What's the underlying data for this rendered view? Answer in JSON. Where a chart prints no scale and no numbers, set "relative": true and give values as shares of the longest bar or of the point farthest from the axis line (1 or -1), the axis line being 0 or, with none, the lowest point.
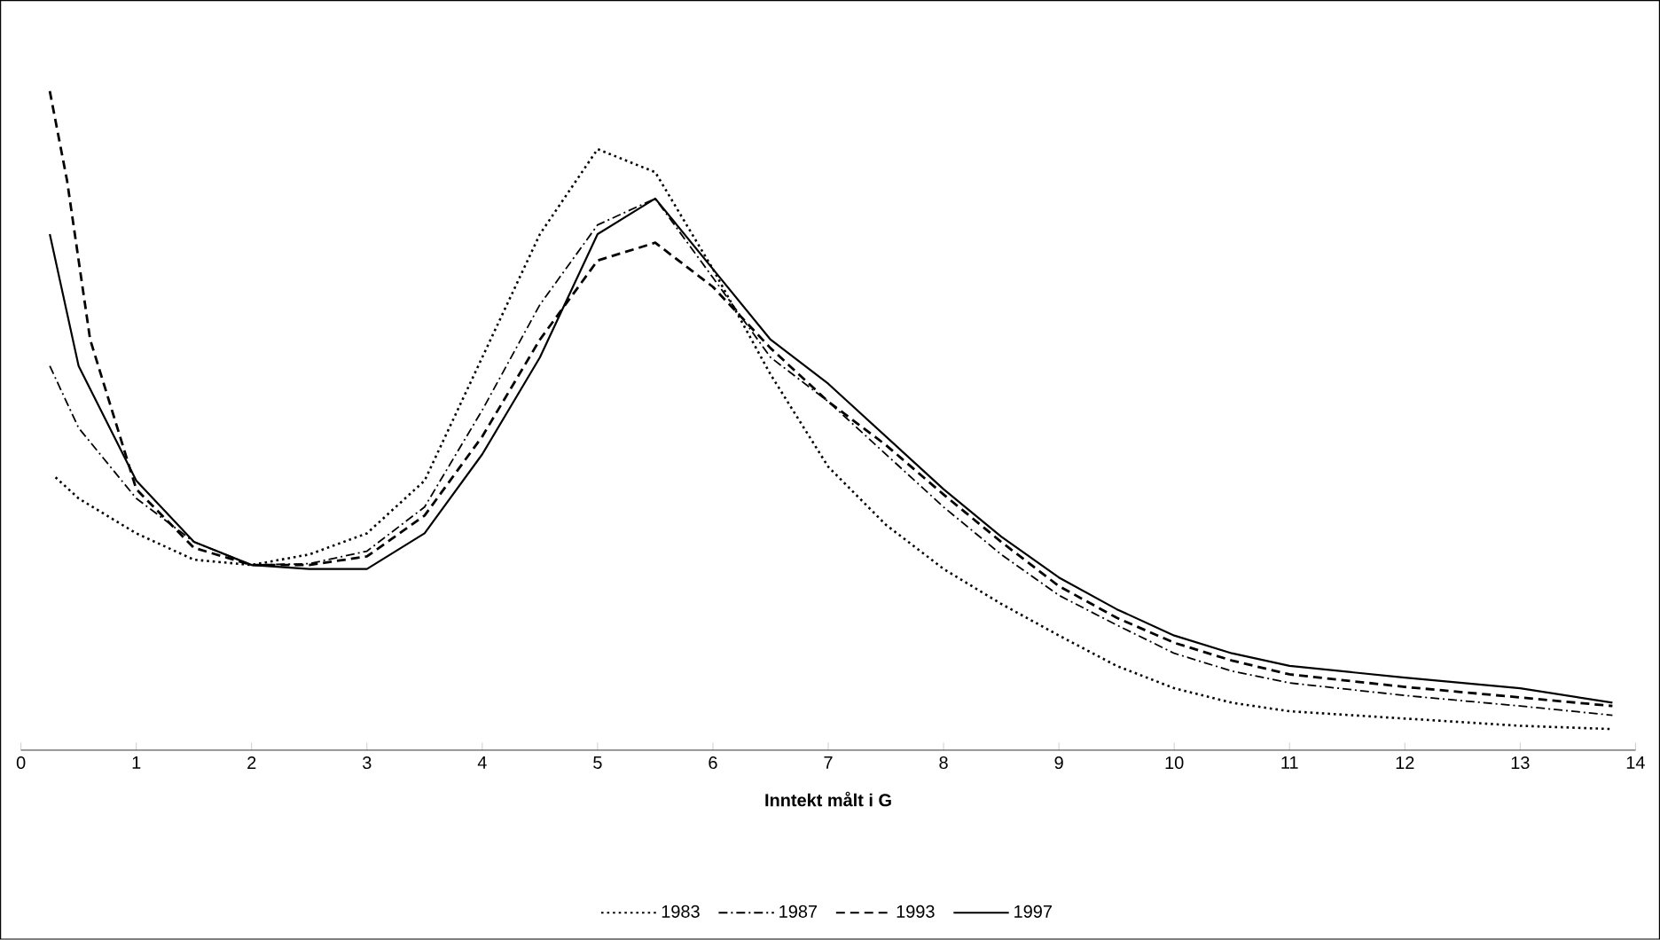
{
  "chart_data": {
    "type": "line",
    "relative": true,
    "xlabel": "Inntekt målt i G",
    "xlim": [
      0,
      14
    ],
    "xticks": [
      0,
      1,
      2,
      3,
      4,
      5,
      6,
      7,
      8,
      9,
      10,
      11,
      12,
      13,
      14
    ],
    "legend": "bottom",
    "marker": "none",
    "grid": false,
    "series": [
      {
        "name": "1983",
        "color": "#000000",
        "line_style": "dotted",
        "x": [
          0.3,
          0.5,
          1,
          1.5,
          2,
          2.5,
          3,
          3.5,
          4,
          4.5,
          5,
          5.5,
          6,
          6.5,
          7,
          7.5,
          8,
          8.5,
          9,
          9.5,
          10,
          10.5,
          11,
          12,
          13,
          13.8
        ],
        "values": [
          0.414,
          0.382,
          0.329,
          0.289,
          0.281,
          0.297,
          0.329,
          0.409,
          0.596,
          0.783,
          0.912,
          0.877,
          0.73,
          0.57,
          0.43,
          0.342,
          0.275,
          0.222,
          0.174,
          0.128,
          0.094,
          0.072,
          0.059,
          0.048,
          0.037,
          0.032
        ]
      },
      {
        "name": "1987",
        "color": "#000000",
        "line_style": "dashdot",
        "x": [
          0.25,
          0.5,
          1,
          1.5,
          2,
          2.5,
          3,
          3.5,
          4,
          4.5,
          5,
          5.5,
          6,
          6.5,
          7,
          7.5,
          8,
          8.5,
          9,
          9.5,
          10,
          10.5,
          11,
          12,
          13,
          13.8
        ],
        "values": [
          0.583,
          0.489,
          0.382,
          0.316,
          0.281,
          0.283,
          0.302,
          0.369,
          0.516,
          0.676,
          0.797,
          0.837,
          0.717,
          0.596,
          0.529,
          0.449,
          0.369,
          0.297,
          0.235,
          0.19,
          0.147,
          0.12,
          0.102,
          0.083,
          0.067,
          0.053
        ]
      },
      {
        "name": "1993",
        "color": "#000000",
        "line_style": "dashed",
        "x": [
          0.25,
          0.4,
          0.6,
          1,
          1.5,
          2,
          2.5,
          3,
          3.5,
          4,
          4.5,
          5,
          5.5,
          6,
          6.5,
          7,
          7.5,
          8,
          8.5,
          9,
          9.5,
          10,
          10.5,
          11,
          12,
          13,
          13.8
        ],
        "values": [
          1.0,
          0.864,
          0.623,
          0.396,
          0.307,
          0.281,
          0.281,
          0.294,
          0.356,
          0.476,
          0.623,
          0.743,
          0.77,
          0.703,
          0.61,
          0.529,
          0.463,
          0.388,
          0.316,
          0.249,
          0.201,
          0.163,
          0.136,
          0.115,
          0.096,
          0.08,
          0.067
        ]
      },
      {
        "name": "1997",
        "color": "#000000",
        "line_style": "solid",
        "x": [
          0.25,
          0.5,
          1,
          1.5,
          2,
          2.5,
          3,
          3.5,
          4,
          4.5,
          5,
          5.5,
          6,
          6.5,
          7,
          7.5,
          8,
          8.5,
          9,
          9.5,
          10,
          10.5,
          11,
          12,
          13,
          13.8
        ],
        "values": [
          0.783,
          0.583,
          0.409,
          0.316,
          0.281,
          0.275,
          0.275,
          0.329,
          0.449,
          0.596,
          0.783,
          0.837,
          0.73,
          0.623,
          0.556,
          0.476,
          0.396,
          0.324,
          0.262,
          0.214,
          0.174,
          0.147,
          0.128,
          0.11,
          0.094,
          0.072
        ]
      }
    ]
  }
}
